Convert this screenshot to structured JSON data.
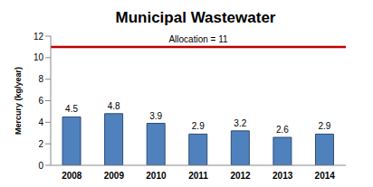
{
  "chart_data": {
    "type": "bar",
    "title": "Municipal Wastewater",
    "y_label": "Mercury (kg/year)",
    "categories": [
      "2008",
      "2009",
      "2010",
      "2011",
      "2012",
      "2013",
      "2014"
    ],
    "values": [
      4.5,
      4.8,
      3.9,
      2.9,
      3.2,
      2.6,
      2.9
    ],
    "color": "#4f81bd",
    "ylim": [
      0,
      12
    ],
    "yticks": [
      0,
      2,
      4,
      6,
      8,
      10,
      12
    ],
    "grid": false,
    "data_labels": true,
    "annotations": [
      {
        "text": "Allocation = 11",
        "y": 11,
        "color": "#c00000"
      }
    ]
  }
}
